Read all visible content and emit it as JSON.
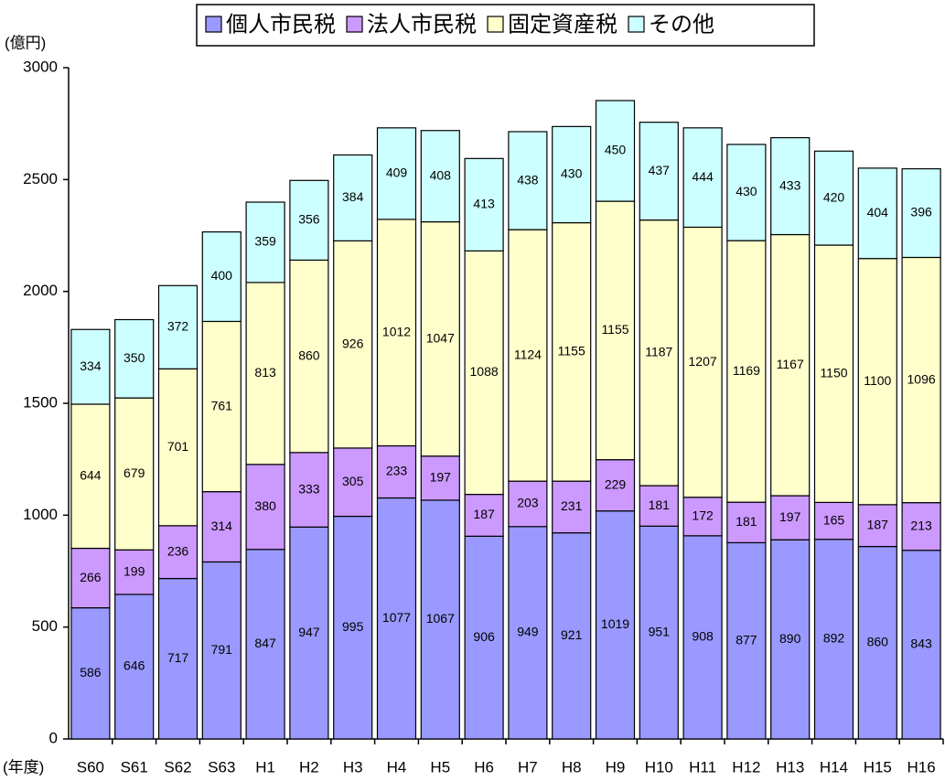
{
  "chart_data": {
    "type": "stacked-bar",
    "y_label": "(億円)",
    "x_label": "(年度)",
    "categories": [
      "S60",
      "S61",
      "S62",
      "S63",
      "H1",
      "H2",
      "H3",
      "H4",
      "H5",
      "H6",
      "H7",
      "H8",
      "H9",
      "H10",
      "H11",
      "H12",
      "H13",
      "H14",
      "H15",
      "H16"
    ],
    "series": [
      {
        "name": "個人市民税",
        "color": "#9999ff",
        "values": [
          586,
          646,
          717,
          791,
          847,
          947,
          995,
          1077,
          1067,
          906,
          949,
          921,
          1019,
          951,
          908,
          877,
          890,
          892,
          860,
          843
        ]
      },
      {
        "name": "法人市民税",
        "color": "#cc99ff",
        "values": [
          266,
          199,
          236,
          314,
          380,
          333,
          305,
          233,
          197,
          187,
          203,
          231,
          229,
          181,
          172,
          181,
          197,
          165,
          187,
          213
        ]
      },
      {
        "name": "固定資産税",
        "color": "#ffffcc",
        "values": [
          644,
          679,
          701,
          761,
          813,
          860,
          926,
          1012,
          1047,
          1088,
          1124,
          1155,
          1155,
          1187,
          1207,
          1169,
          1167,
          1150,
          1100,
          1096
        ]
      },
      {
        "name": "その他",
        "color": "#ccffff",
        "values": [
          334,
          350,
          372,
          400,
          359,
          356,
          384,
          409,
          408,
          413,
          438,
          430,
          450,
          437,
          444,
          430,
          433,
          420,
          404,
          396
        ]
      }
    ],
    "ylim": [
      0,
      3000
    ],
    "yticks": [
      0,
      500,
      1000,
      1500,
      2000,
      2500,
      3000
    ],
    "grid": false
  }
}
